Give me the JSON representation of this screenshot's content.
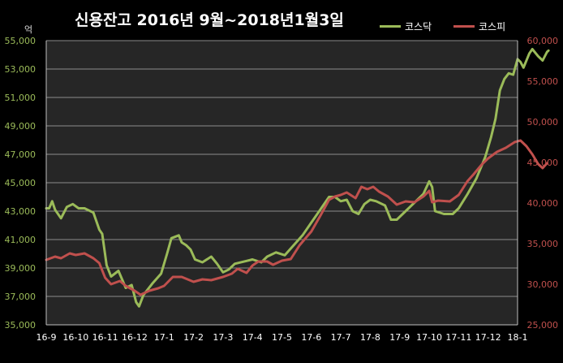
{
  "chart_data": {
    "type": "line",
    "title": "신용잔고 2016년 9월~2018년1월3일",
    "left_axis_unit": "억",
    "x_categories": [
      "16-9",
      "16-10",
      "16-11",
      "16-12",
      "17-1",
      "17-2",
      "17-3",
      "17-4",
      "17-5",
      "17-6",
      "17-7",
      "17-8",
      "17-9",
      "17-10",
      "17-11",
      "17-12",
      "18-1"
    ],
    "y_left": {
      "range": [
        35000,
        55000
      ],
      "ticks": [
        "35,000",
        "37,000",
        "39,000",
        "41,000",
        "43,000",
        "45,000",
        "47,000",
        "49,000",
        "51,000",
        "53,000",
        "55,000"
      ]
    },
    "y_right": {
      "range": [
        25000,
        60000
      ],
      "ticks": [
        "25,000",
        "30,000",
        "35,000",
        "40,000",
        "45,000",
        "50,000",
        "55,000",
        "60,000"
      ]
    },
    "grid": true,
    "legend_position": "top-right",
    "series": [
      {
        "name": "코스닥",
        "axis": "left",
        "color": "#9bbb59",
        "points": [
          [
            0,
            43200
          ],
          [
            0.1,
            43200
          ],
          [
            0.2,
            43700
          ],
          [
            0.3,
            43100
          ],
          [
            0.5,
            42500
          ],
          [
            0.7,
            43300
          ],
          [
            0.9,
            43500
          ],
          [
            1.1,
            43200
          ],
          [
            1.3,
            43200
          ],
          [
            1.6,
            42900
          ],
          [
            1.8,
            41700
          ],
          [
            1.9,
            41400
          ],
          [
            2.05,
            39200
          ],
          [
            2.2,
            38400
          ],
          [
            2.45,
            38800
          ],
          [
            2.7,
            37600
          ],
          [
            2.9,
            37800
          ],
          [
            3.05,
            36600
          ],
          [
            3.15,
            36300
          ],
          [
            3.3,
            37100
          ],
          [
            3.6,
            37900
          ],
          [
            3.9,
            38600
          ],
          [
            4.1,
            40000
          ],
          [
            4.25,
            41100
          ],
          [
            4.5,
            41300
          ],
          [
            4.6,
            40800
          ],
          [
            4.75,
            40600
          ],
          [
            4.9,
            40300
          ],
          [
            5.05,
            39600
          ],
          [
            5.3,
            39400
          ],
          [
            5.6,
            39800
          ],
          [
            5.8,
            39300
          ],
          [
            6.0,
            38700
          ],
          [
            6.2,
            38900
          ],
          [
            6.4,
            39300
          ],
          [
            6.8,
            39500
          ],
          [
            7.0,
            39600
          ],
          [
            7.3,
            39400
          ],
          [
            7.5,
            39800
          ],
          [
            7.8,
            40100
          ],
          [
            8.1,
            39900
          ],
          [
            8.4,
            40600
          ],
          [
            8.7,
            41300
          ],
          [
            9.0,
            42200
          ],
          [
            9.3,
            43100
          ],
          [
            9.6,
            44000
          ],
          [
            9.8,
            44000
          ],
          [
            10.0,
            43700
          ],
          [
            10.2,
            43800
          ],
          [
            10.4,
            43000
          ],
          [
            10.6,
            42800
          ],
          [
            10.8,
            43500
          ],
          [
            11.0,
            43800
          ],
          [
            11.2,
            43700
          ],
          [
            11.5,
            43400
          ],
          [
            11.7,
            42400
          ],
          [
            11.9,
            42400
          ],
          [
            12.2,
            43000
          ],
          [
            12.5,
            43600
          ],
          [
            12.8,
            44200
          ],
          [
            13.0,
            45100
          ],
          [
            13.1,
            44700
          ],
          [
            13.2,
            43000
          ],
          [
            13.5,
            42800
          ],
          [
            13.8,
            42800
          ],
          [
            14.0,
            43200
          ],
          [
            14.3,
            44200
          ],
          [
            14.6,
            45300
          ],
          [
            14.9,
            46800
          ],
          [
            15.1,
            48200
          ],
          [
            15.25,
            49500
          ],
          [
            15.4,
            51500
          ],
          [
            15.55,
            52300
          ],
          [
            15.7,
            52700
          ],
          [
            15.85,
            52600
          ],
          [
            16.0,
            53700
          ],
          [
            16.1,
            53500
          ],
          [
            16.2,
            53100
          ],
          [
            16.4,
            54100
          ],
          [
            16.5,
            54400
          ],
          [
            16.7,
            53900
          ],
          [
            16.85,
            53600
          ],
          [
            17.0,
            54200
          ],
          [
            17.05,
            54300
          ]
        ]
      },
      {
        "name": "코스피",
        "axis": "right",
        "color": "#c0504d",
        "points": [
          [
            0,
            33000
          ],
          [
            0.3,
            33400
          ],
          [
            0.5,
            33200
          ],
          [
            0.8,
            33800
          ],
          [
            1.0,
            33600
          ],
          [
            1.3,
            33800
          ],
          [
            1.6,
            33200
          ],
          [
            1.8,
            32600
          ],
          [
            2.0,
            30800
          ],
          [
            2.2,
            30000
          ],
          [
            2.5,
            30400
          ],
          [
            2.7,
            29800
          ],
          [
            3.0,
            29200
          ],
          [
            3.2,
            28700
          ],
          [
            3.5,
            29200
          ],
          [
            3.8,
            29500
          ],
          [
            4.0,
            29800
          ],
          [
            4.3,
            30900
          ],
          [
            4.6,
            30900
          ],
          [
            5.0,
            30300
          ],
          [
            5.3,
            30600
          ],
          [
            5.6,
            30500
          ],
          [
            6.0,
            30900
          ],
          [
            6.3,
            31300
          ],
          [
            6.5,
            31900
          ],
          [
            6.8,
            31400
          ],
          [
            7.0,
            32300
          ],
          [
            7.2,
            32800
          ],
          [
            7.5,
            32800
          ],
          [
            7.7,
            32400
          ],
          [
            8.0,
            32900
          ],
          [
            8.3,
            33100
          ],
          [
            8.6,
            34800
          ],
          [
            9.0,
            36500
          ],
          [
            9.3,
            38400
          ],
          [
            9.6,
            40400
          ],
          [
            9.8,
            40800
          ],
          [
            10.0,
            41000
          ],
          [
            10.2,
            41300
          ],
          [
            10.5,
            40600
          ],
          [
            10.7,
            42000
          ],
          [
            10.9,
            41700
          ],
          [
            11.1,
            42000
          ],
          [
            11.3,
            41400
          ],
          [
            11.6,
            40800
          ],
          [
            11.9,
            39800
          ],
          [
            12.2,
            40200
          ],
          [
            12.5,
            40100
          ],
          [
            12.8,
            40800
          ],
          [
            13.0,
            41500
          ],
          [
            13.1,
            40100
          ],
          [
            13.3,
            40300
          ],
          [
            13.7,
            40200
          ],
          [
            14.0,
            41000
          ],
          [
            14.3,
            42700
          ],
          [
            14.5,
            43500
          ],
          [
            14.8,
            44800
          ],
          [
            15.0,
            45500
          ],
          [
            15.3,
            46300
          ],
          [
            15.6,
            46800
          ],
          [
            15.9,
            47500
          ],
          [
            16.1,
            47700
          ],
          [
            16.3,
            47000
          ],
          [
            16.5,
            46000
          ],
          [
            16.7,
            44800
          ],
          [
            16.85,
            44300
          ],
          [
            17.0,
            44900
          ]
        ]
      }
    ]
  }
}
